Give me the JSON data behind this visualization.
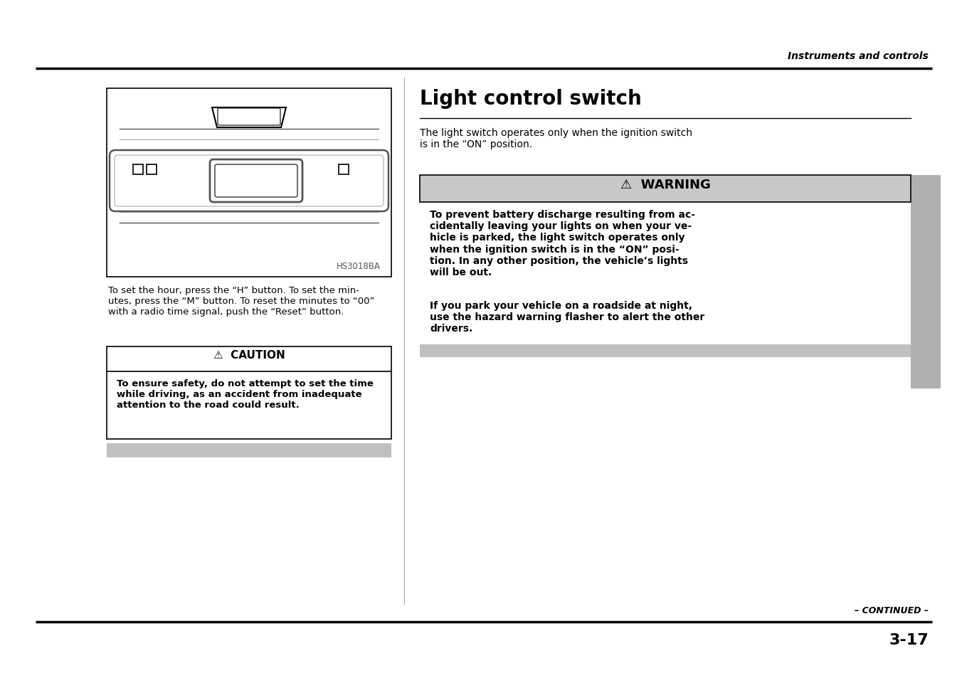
{
  "page_bg": "#ffffff",
  "header_text": "Instruments and controls",
  "title": "Light control switch",
  "intro_text": "The light switch operates only when the ignition switch\nis in the “ON” position.",
  "warning_header": "⚠  WARNING",
  "warning_bg": "#c8c8c8",
  "warning_text1": "To prevent battery discharge resulting from ac-\ncidentally leaving your lights on when your ve-\nhicle is parked, the light switch operates only\nwhen the ignition switch is in the “ON” posi-\ntion. In any other position, the vehicle’s lights\nwill be out.",
  "warning_text2": "If you park your vehicle on a roadside at night,\nuse the hazard warning flasher to alert the other\ndrivers.",
  "caution_header": "⚠  CAUTION",
  "caution_text": "To ensure safety, do not attempt to set the time\nwhile driving, as an accident from inadequate\nattention to the road could result.",
  "left_body_text": "To set the hour, press the “H” button. To set the min-\nutes, press the “M” button. To reset the minutes to “00”\nwith a radio time signal, push the “Reset” button.",
  "diagram_label": "HS3018BA",
  "footer_continued": "– CONTINUED –",
  "footer_page": "3-17",
  "divider_color": "#000000",
  "gray_tab_color": "#b0b0b0",
  "text_color": "#000000",
  "warning_gray": "#c8c8c8",
  "bottom_gray": "#c0c0c0"
}
